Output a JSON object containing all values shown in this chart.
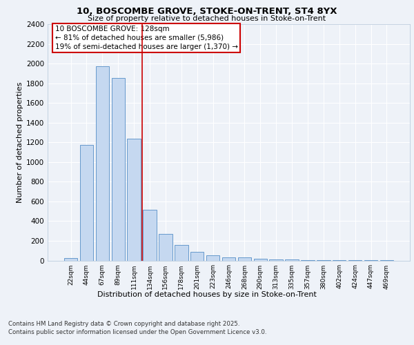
{
  "title_line1": "10, BOSCOMBE GROVE, STOKE-ON-TRENT, ST4 8YX",
  "title_line2": "Size of property relative to detached houses in Stoke-on-Trent",
  "xlabel": "Distribution of detached houses by size in Stoke-on-Trent",
  "ylabel": "Number of detached properties",
  "categories": [
    "22sqm",
    "44sqm",
    "67sqm",
    "89sqm",
    "111sqm",
    "134sqm",
    "156sqm",
    "178sqm",
    "201sqm",
    "223sqm",
    "246sqm",
    "268sqm",
    "290sqm",
    "313sqm",
    "335sqm",
    "357sqm",
    "380sqm",
    "402sqm",
    "424sqm",
    "447sqm",
    "469sqm"
  ],
  "values": [
    25,
    1175,
    1975,
    1850,
    1240,
    515,
    270,
    155,
    90,
    50,
    35,
    30,
    15,
    10,
    8,
    5,
    3,
    2,
    1,
    1,
    1
  ],
  "bar_color": "#c5d8f0",
  "bar_edge_color": "#6699cc",
  "vline_x": 4.5,
  "vline_color": "#cc0000",
  "annotation_text": "10 BOSCOMBE GROVE: 128sqm\n← 81% of detached houses are smaller (5,986)\n19% of semi-detached houses are larger (1,370) →",
  "annotation_box_color": "#ffffff",
  "annotation_box_edge": "#cc0000",
  "ylim": [
    0,
    2400
  ],
  "yticks": [
    0,
    200,
    400,
    600,
    800,
    1000,
    1200,
    1400,
    1600,
    1800,
    2000,
    2200,
    2400
  ],
  "footer_line1": "Contains HM Land Registry data © Crown copyright and database right 2025.",
  "footer_line2": "Contains public sector information licensed under the Open Government Licence v3.0.",
  "bg_color": "#eef2f8",
  "grid_color": "#ffffff"
}
